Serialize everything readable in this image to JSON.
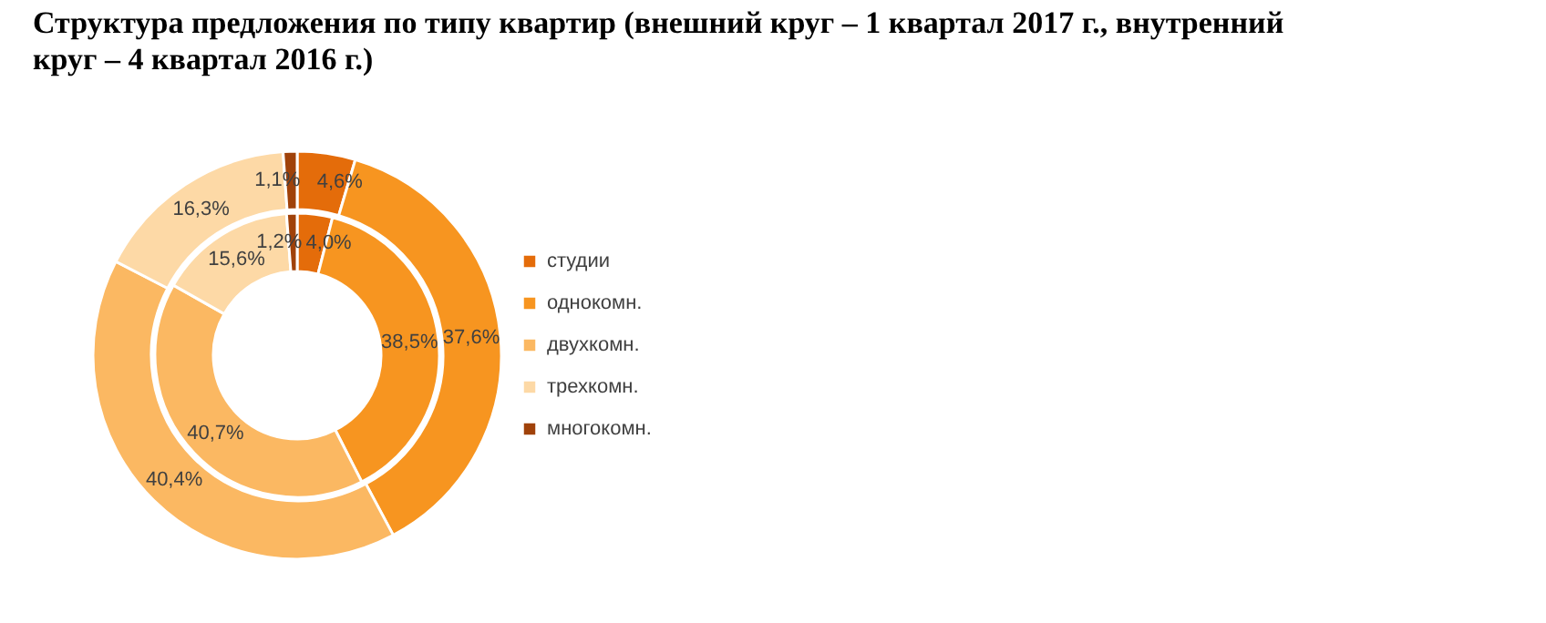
{
  "chart_data": {
    "type": "donut",
    "title": "Структура предложения по типу квартир (внешний круг – 1 квартал 2017 г., внутренний круг – 4 квартал 2016 г.)",
    "categories": [
      "студии",
      "однокомн.",
      "двухкомн.",
      "трехкомн.",
      "многокомн."
    ],
    "colors": [
      "#e46c0a",
      "#f79520",
      "#fbb862",
      "#fdd9a6",
      "#a0420a"
    ],
    "series": [
      {
        "values": [
          4.6,
          37.6,
          40.4,
          16.3,
          1.1
        ],
        "value_labels": [
          "4,6%",
          "37,6%",
          "40,4%",
          "16,3%",
          "1,1%"
        ]
      },
      {
        "values": [
          4.0,
          38.5,
          40.7,
          15.6,
          1.2
        ],
        "value_labels": [
          "4,0%",
          "38,5%",
          "40,7%",
          "15,6%",
          "1,2%"
        ]
      }
    ],
    "legend": "right"
  }
}
